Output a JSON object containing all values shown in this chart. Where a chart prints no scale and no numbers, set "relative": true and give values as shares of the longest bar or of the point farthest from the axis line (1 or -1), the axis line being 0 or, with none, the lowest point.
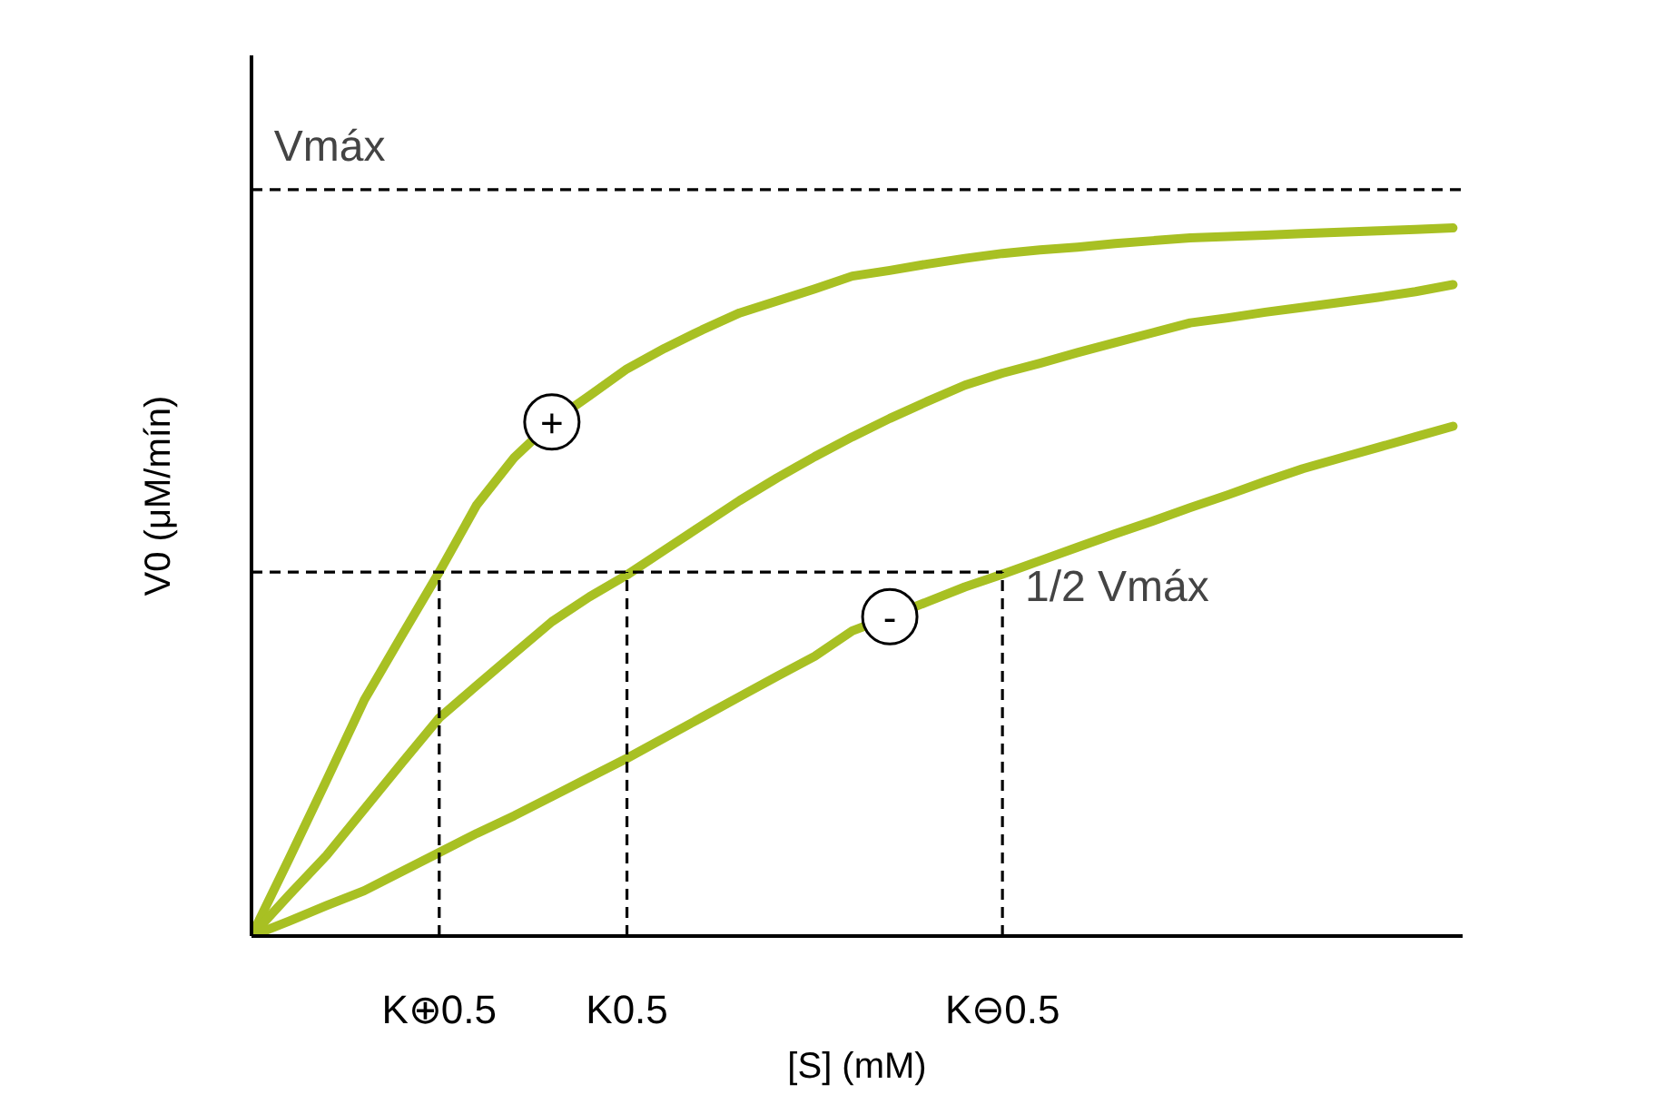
{
  "chart_data": {
    "type": "line",
    "relative": true,
    "xlabel": "[S] (mM)",
    "ylabel": "V0 (μM/mín)",
    "line_style": "solid",
    "categories": [
      null,
      null,
      null,
      null,
      null,
      "K⊕0.5",
      null,
      null,
      null,
      null,
      "K0.5",
      null,
      null,
      null,
      null,
      null,
      null,
      null,
      null,
      null,
      "K⊖0.5",
      null,
      null,
      null,
      null,
      null,
      null,
      null,
      null,
      null,
      null,
      null,
      null
    ],
    "series": [
      {
        "name": "+",
        "color": "#a8c023",
        "values": [
          0,
          0.109,
          0.22,
          0.333,
          0.424,
          0.514,
          0.609,
          0.676,
          0.726,
          0.763,
          0.801,
          0.83,
          0.856,
          0.88,
          0.897,
          0.914,
          0.932,
          0.94,
          0.949,
          0.957,
          0.964,
          0.969,
          0.973,
          0.978,
          0.982,
          0.986,
          0.988,
          0.99,
          0.992,
          0.994,
          0.996,
          0.998,
          1.0
        ]
      },
      {
        "color": "#a8c023",
        "values": [
          0,
          0.058,
          0.114,
          0.179,
          0.244,
          0.308,
          0.354,
          0.399,
          0.444,
          0.479,
          0.51,
          0.545,
          0.58,
          0.615,
          0.647,
          0.677,
          0.705,
          0.731,
          0.755,
          0.778,
          0.795,
          0.809,
          0.824,
          0.838,
          0.852,
          0.866,
          0.873,
          0.881,
          0.888,
          0.895,
          0.902,
          0.91,
          0.92
        ]
      },
      {
        "name": "-",
        "color": "#a8c023",
        "values": [
          0,
          0.021,
          0.043,
          0.064,
          0.091,
          0.118,
          0.145,
          0.17,
          0.197,
          0.224,
          0.251,
          0.28,
          0.309,
          0.338,
          0.367,
          0.395,
          0.431,
          0.451,
          0.472,
          0.493,
          0.511,
          0.53,
          0.549,
          0.568,
          0.586,
          0.605,
          0.623,
          0.642,
          0.66,
          0.675,
          0.69,
          0.705,
          0.72
        ]
      }
    ],
    "ref_lines": [
      {
        "axis": "y",
        "value": 1.054,
        "label": "Vmáx",
        "color": "#000000",
        "line_style": "dashed"
      },
      {
        "axis": "y",
        "value": 0.514,
        "label": "1/2 Vmáx",
        "color": "#000000",
        "line_style": "dashed"
      },
      {
        "axis": "x",
        "value": "K⊕0.5",
        "color": "#000000",
        "line_style": "dashed"
      },
      {
        "axis": "x",
        "value": "K0.5",
        "color": "#000000",
        "line_style": "dashed"
      },
      {
        "axis": "x",
        "value": "K⊖0.5",
        "color": "#000000",
        "line_style": "dashed"
      }
    ]
  }
}
